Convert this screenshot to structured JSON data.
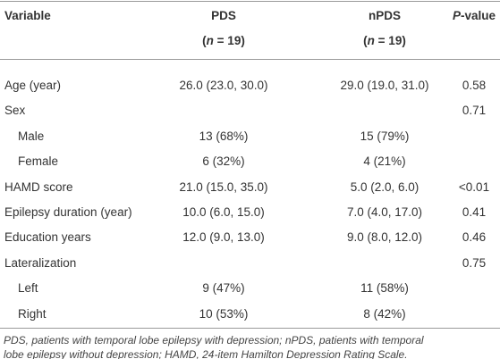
{
  "table": {
    "header": {
      "variable": "Variable",
      "pds": "PDS",
      "pds_n": [
        "(",
        "n",
        " = 19)"
      ],
      "npds": "nPDS",
      "npds_n": [
        "(",
        "n",
        " = 19)"
      ],
      "p_value": [
        "P",
        "-value"
      ]
    },
    "rows": [
      {
        "label": "Age (year)",
        "pds": "26.0 (23.0, 30.0)",
        "npds": "29.0 (19.0, 31.0)",
        "p": "0.58"
      },
      {
        "label": "Sex",
        "p": "0.71",
        "children": [
          {
            "label": "Male",
            "pds": "13 (68%)",
            "npds": "15 (79%)"
          },
          {
            "label": "Female",
            "pds": "6 (32%)",
            "npds": "4 (21%)"
          }
        ]
      },
      {
        "label": "HAMD score",
        "pds": "21.0 (15.0, 35.0)",
        "npds": "5.0 (2.0, 6.0)",
        "p": "<0.01"
      },
      {
        "label": "Epilepsy duration (year)",
        "pds": "10.0 (6.0, 15.0)",
        "npds": "7.0 (4.0, 17.0)",
        "p": "0.41"
      },
      {
        "label": "Education years",
        "pds": "12.0 (9.0, 13.0)",
        "npds": "9.0 (8.0, 12.0)",
        "p": "0.46"
      },
      {
        "label": "Lateralization",
        "p": "0.75",
        "children": [
          {
            "label": "Left",
            "pds": "9 (47%)",
            "npds": "11 (58%)"
          },
          {
            "label": "Right",
            "pds": "10 (53%)",
            "npds": "8 (42%)"
          }
        ]
      }
    ],
    "footnote": [
      "PDS, patients with temporal lobe epilepsy with depression; nPDS, patients with temporal",
      "lobe epilepsy without depression; HAMD, 24-item Hamilton Depression Rating Scale."
    ]
  }
}
